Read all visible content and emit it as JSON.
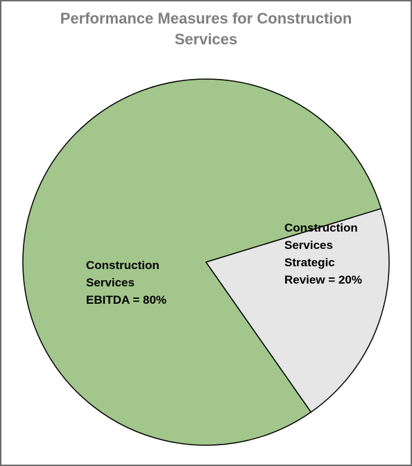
{
  "chart_data": {
    "type": "pie",
    "title_lines": [
      "Performance Measures for Construction",
      "Services"
    ],
    "slices": [
      {
        "label_lines": [
          "Construction",
          "Services",
          "EBITDA = 80%"
        ],
        "value": 80,
        "color": "#a2c68c"
      },
      {
        "label_lines": [
          "Construction",
          "Services",
          "Strategic",
          "Review = 20%"
        ],
        "value": 20,
        "color": "#e6e6e6"
      }
    ]
  }
}
